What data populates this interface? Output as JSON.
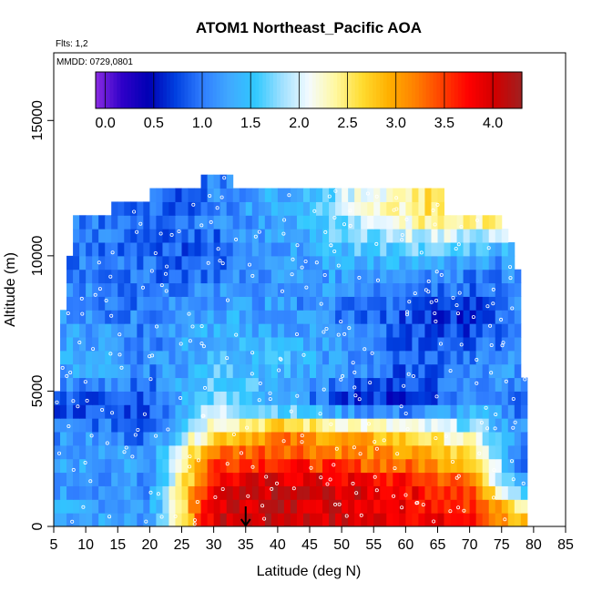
{
  "chart_data": {
    "type": "heatmap",
    "title": "ATOM1 Northeast_Pacific AOA",
    "annotations": {
      "flights": "Flts: 1,2",
      "dates": "MMDD: 0729,0801"
    },
    "xlabel": "Latitude (deg N)",
    "ylabel": "Altitude (m)",
    "xlim": [
      5,
      85
    ],
    "ylim": [
      0,
      17500
    ],
    "x_ticks": [
      "5",
      "10",
      "15",
      "20",
      "25",
      "30",
      "35",
      "40",
      "45",
      "50",
      "55",
      "60",
      "65",
      "70",
      "75",
      "80",
      "85"
    ],
    "y_ticks": [
      "0",
      "5000",
      "10000",
      "15000"
    ],
    "colorbar": {
      "range": [
        -0.1,
        4.3
      ],
      "tick_labels": [
        "0.0",
        "0.5",
        "1.0",
        "1.5",
        "2.0",
        "2.5",
        "3.0",
        "3.5",
        "4.0"
      ],
      "colors": [
        "#8a2be2",
        "#2e00c8",
        "#0000b4",
        "#0040e0",
        "#2f7dff",
        "#40a8ff",
        "#30c8ff",
        "#a0e0ff",
        "#f4fbff",
        "#fff8a0",
        "#ffdc30",
        "#ffb000",
        "#ff8000",
        "#ff4000",
        "#ff0000",
        "#d00000",
        "#a02020"
      ]
    },
    "marker_latitude": 35,
    "altitude_rows_m": [
      250,
      750,
      1250,
      1750,
      2250,
      2750,
      3250,
      3750,
      4250,
      4750,
      5250,
      5750,
      6250,
      6750,
      7250,
      7750,
      8250,
      8750,
      9250,
      9750,
      10250,
      10750,
      11250,
      11750,
      12250,
      12750
    ],
    "lat_coverage_deg": [
      [
        5,
        79
      ],
      [
        5,
        79
      ],
      [
        5,
        79
      ],
      [
        5,
        79
      ],
      [
        5,
        79
      ],
      [
        5,
        79
      ],
      [
        5,
        79
      ],
      [
        5,
        79
      ],
      [
        5,
        79
      ],
      [
        5,
        79
      ],
      [
        6,
        79
      ],
      [
        6,
        78
      ],
      [
        6,
        78
      ],
      [
        6,
        78
      ],
      [
        6,
        78
      ],
      [
        6,
        78
      ],
      [
        7,
        78
      ],
      [
        7,
        78
      ],
      [
        7,
        78
      ],
      [
        7,
        77
      ],
      [
        8,
        77
      ],
      [
        8,
        76
      ],
      [
        8,
        75
      ],
      [
        14,
        66
      ],
      [
        20,
        66
      ],
      [
        28,
        33
      ]
    ],
    "aoa_values_sample_days": [
      {
        "altitude_m": 500,
        "lat": [
          10,
          20,
          30,
          40,
          50,
          60,
          70,
          78
        ],
        "aoa": [
          1.3,
          1.2,
          4.0,
          4.1,
          4.0,
          3.9,
          3.7,
          2.8
        ]
      },
      {
        "altitude_m": 1500,
        "lat": [
          10,
          20,
          30,
          40,
          50,
          60,
          70,
          78
        ],
        "aoa": [
          1.2,
          1.1,
          3.8,
          4.1,
          4.0,
          3.8,
          3.4,
          1.1
        ]
      },
      {
        "altitude_m": 2500,
        "lat": [
          10,
          20,
          30,
          40,
          50,
          60,
          70,
          78
        ],
        "aoa": [
          1.3,
          1.2,
          3.5,
          3.6,
          3.3,
          3.1,
          2.8,
          1.0
        ]
      },
      {
        "altitude_m": 3500,
        "lat": [
          10,
          20,
          30,
          40,
          50,
          60,
          70,
          78
        ],
        "aoa": [
          1.1,
          0.9,
          2.5,
          3.1,
          2.9,
          2.6,
          2.0,
          1.1
        ]
      },
      {
        "altitude_m": 4500,
        "lat": [
          10,
          20,
          30,
          40,
          50,
          60,
          70,
          78
        ],
        "aoa": [
          0.7,
          0.8,
          1.8,
          1.3,
          0.7,
          0.5,
          1.2,
          1.0
        ]
      },
      {
        "altitude_m": 6000,
        "lat": [
          10,
          20,
          30,
          40,
          50,
          60,
          70,
          78
        ],
        "aoa": [
          1.4,
          1.1,
          1.5,
          1.5,
          1.2,
          0.9,
          1.0,
          1.2
        ]
      },
      {
        "altitude_m": 8000,
        "lat": [
          10,
          20,
          30,
          40,
          50,
          60,
          70,
          78
        ],
        "aoa": [
          1.1,
          1.0,
          1.3,
          1.2,
          1.0,
          0.8,
          0.6,
          1.0
        ]
      },
      {
        "altitude_m": 10000,
        "lat": [
          10,
          20,
          30,
          40,
          50,
          60,
          70,
          78
        ],
        "aoa": [
          1.0,
          0.9,
          0.8,
          1.2,
          1.4,
          1.5,
          1.3,
          1.1
        ]
      },
      {
        "altitude_m": 11500,
        "lat": [
          15,
          25,
          35,
          45,
          55,
          65
        ],
        "aoa": [
          1.0,
          0.9,
          1.2,
          1.5,
          2.2,
          2.6
        ]
      }
    ]
  }
}
